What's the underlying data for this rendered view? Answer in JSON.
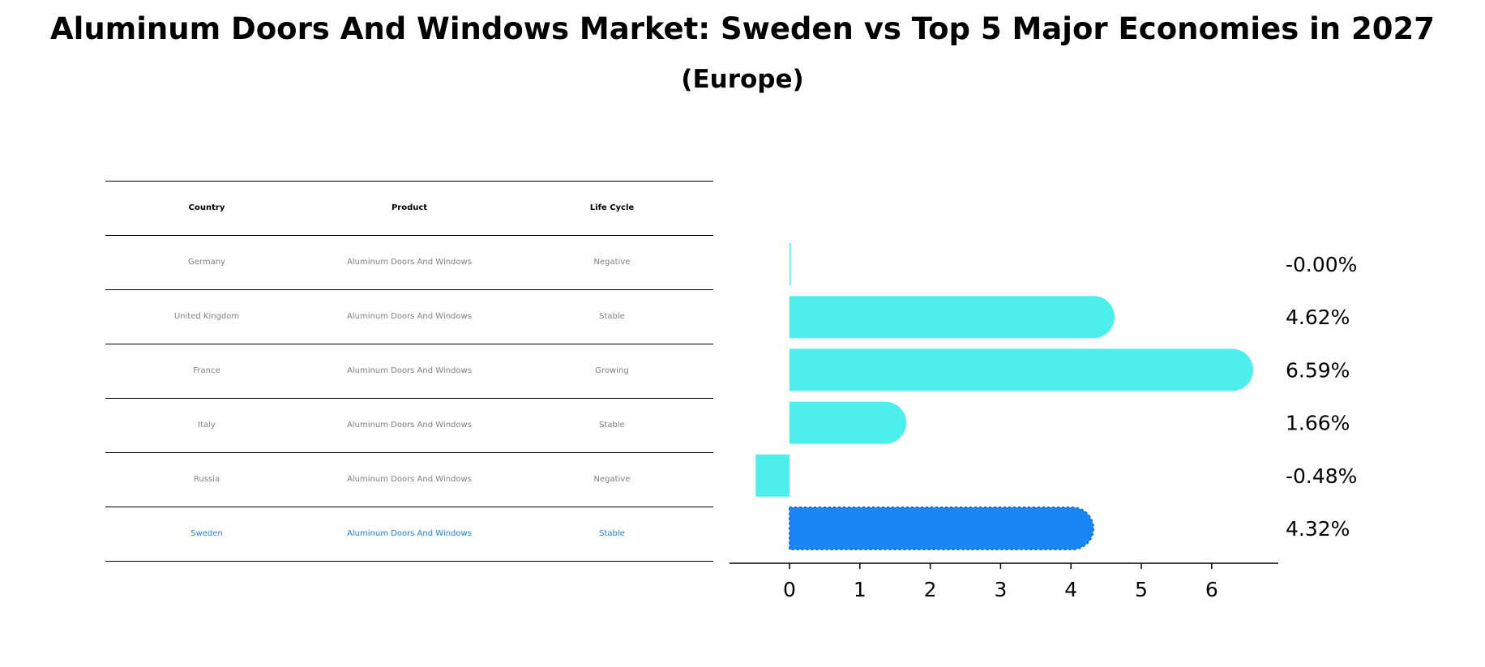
{
  "chart_data": {
    "type": "bar",
    "orientation": "horizontal",
    "title": "Aluminum Doors And Windows Market: Sweden vs Top 5 Major Economies in 2027",
    "subtitle": "(Europe)",
    "table": {
      "headers": [
        "Country",
        "Product",
        "Life Cycle"
      ],
      "rows": [
        [
          "Germany",
          "Aluminum Doors And Windows",
          "Negative"
        ],
        [
          "United Kingdom",
          "Aluminum Doors And Windows",
          "Stable"
        ],
        [
          "France",
          "Aluminum Doors And Windows",
          "Growing"
        ],
        [
          "Italy",
          "Aluminum Doors And Windows",
          "Stable"
        ],
        [
          "Russia",
          "Aluminum Doors And Windows",
          "Negative"
        ],
        [
          "Sweden",
          "Aluminum Doors And Windows",
          "Stable"
        ]
      ]
    },
    "categories": [
      "Germany",
      "United Kingdom",
      "France",
      "Italy",
      "Russia",
      "Sweden"
    ],
    "values": [
      -0.0,
      4.62,
      6.59,
      1.66,
      -0.48,
      4.32
    ],
    "value_labels": [
      "-0.00%",
      "4.62%",
      "6.59%",
      "1.66%",
      "-0.48%",
      "4.32%"
    ],
    "highlight": "Sweden",
    "xlim": [
      -0.85,
      6.95
    ],
    "xticks": [
      0,
      1,
      2,
      3,
      4,
      5,
      6
    ],
    "colors": {
      "bar": "#4cefec",
      "highlight": "#1a86f5",
      "highlight_text": "#1f82d9",
      "muted_text": "#808080"
    }
  }
}
